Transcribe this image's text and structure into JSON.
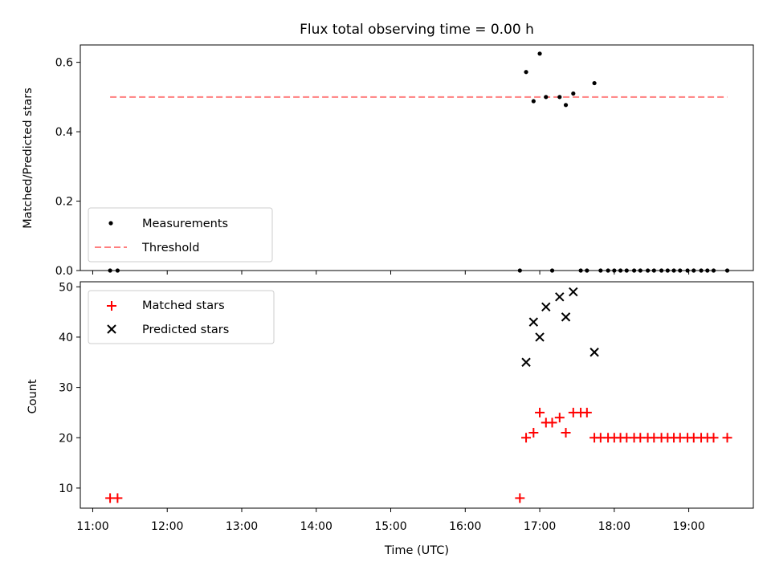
{
  "chart_data": [
    {
      "type": "scatter",
      "title": "Flux total observing time = 0.00 h",
      "xlabel": "",
      "ylabel": "Matched/Predicted stars",
      "xlim": [
        "10:50",
        "19:52"
      ],
      "ylim": [
        0,
        0.65
      ],
      "yticks": [
        0.0,
        0.2,
        0.4,
        0.6
      ],
      "ytick_labels": [
        "0.0",
        "0.2",
        "0.4",
        "0.6"
      ],
      "grid": false,
      "legend_position": "lower-left",
      "colors": {
        "measurements": "#000000",
        "threshold": "#ff7f7f"
      },
      "series": [
        {
          "name": "Measurements",
          "x": [
            "11:14",
            "11:20",
            "16:44",
            "16:49",
            "16:55",
            "17:00",
            "17:05",
            "17:10",
            "17:16",
            "17:21",
            "17:27",
            "17:33",
            "17:38",
            "17:44",
            "17:49",
            "17:55",
            "18:00",
            "18:05",
            "18:10",
            "18:16",
            "18:21",
            "18:27",
            "18:32",
            "18:38",
            "18:43",
            "18:48",
            "18:53",
            "18:59",
            "19:04",
            "19:10",
            "19:15",
            "19:20",
            "19:31"
          ],
          "y": [
            0,
            0,
            0,
            0.572,
            0.488,
            0.625,
            0.5,
            0,
            0.5,
            0.477,
            0.51,
            0,
            0,
            0.54,
            0,
            0,
            0,
            0,
            0,
            0,
            0,
            0,
            0,
            0,
            0,
            0,
            0,
            0,
            0,
            0,
            0,
            0,
            0
          ]
        },
        {
          "name": "Threshold",
          "style": "dashed-line",
          "x": [
            "11:14",
            "19:31"
          ],
          "y": [
            0.5,
            0.5
          ]
        }
      ]
    },
    {
      "type": "scatter",
      "title": "",
      "xlabel": "Time (UTC)",
      "ylabel": "Count",
      "xlim": [
        "10:50",
        "19:52"
      ],
      "ylim": [
        6,
        51
      ],
      "xticks": [
        "11:00",
        "12:00",
        "13:00",
        "14:00",
        "15:00",
        "16:00",
        "17:00",
        "18:00",
        "19:00"
      ],
      "yticks": [
        10,
        20,
        30,
        40,
        50
      ],
      "ytick_labels": [
        "10",
        "20",
        "30",
        "40",
        "50"
      ],
      "grid": false,
      "legend_position": "upper-left",
      "colors": {
        "matched": "#ff0000",
        "predicted": "#000000"
      },
      "series": [
        {
          "name": "Matched stars",
          "marker": "plus",
          "x": [
            "11:14",
            "11:20",
            "16:44",
            "16:49",
            "16:55",
            "17:00",
            "17:05",
            "17:10",
            "17:16",
            "17:21",
            "17:27",
            "17:33",
            "17:38",
            "17:44",
            "17:49",
            "17:55",
            "18:00",
            "18:05",
            "18:10",
            "18:16",
            "18:21",
            "18:27",
            "18:32",
            "18:38",
            "18:43",
            "18:48",
            "18:53",
            "18:59",
            "19:04",
            "19:10",
            "19:15",
            "19:20",
            "19:31"
          ],
          "y": [
            8,
            8,
            8,
            20,
            21,
            25,
            23,
            23,
            24,
            21,
            25,
            25,
            25,
            20,
            20,
            20,
            20,
            20,
            20,
            20,
            20,
            20,
            20,
            20,
            20,
            20,
            20,
            20,
            20,
            20,
            20,
            20,
            20
          ]
        },
        {
          "name": "Predicted stars",
          "marker": "x",
          "x": [
            "16:49",
            "16:55",
            "17:00",
            "17:05",
            "17:16",
            "17:21",
            "17:27",
            "17:44"
          ],
          "y": [
            35,
            43,
            40,
            46,
            48,
            44,
            49,
            37
          ]
        }
      ]
    }
  ]
}
